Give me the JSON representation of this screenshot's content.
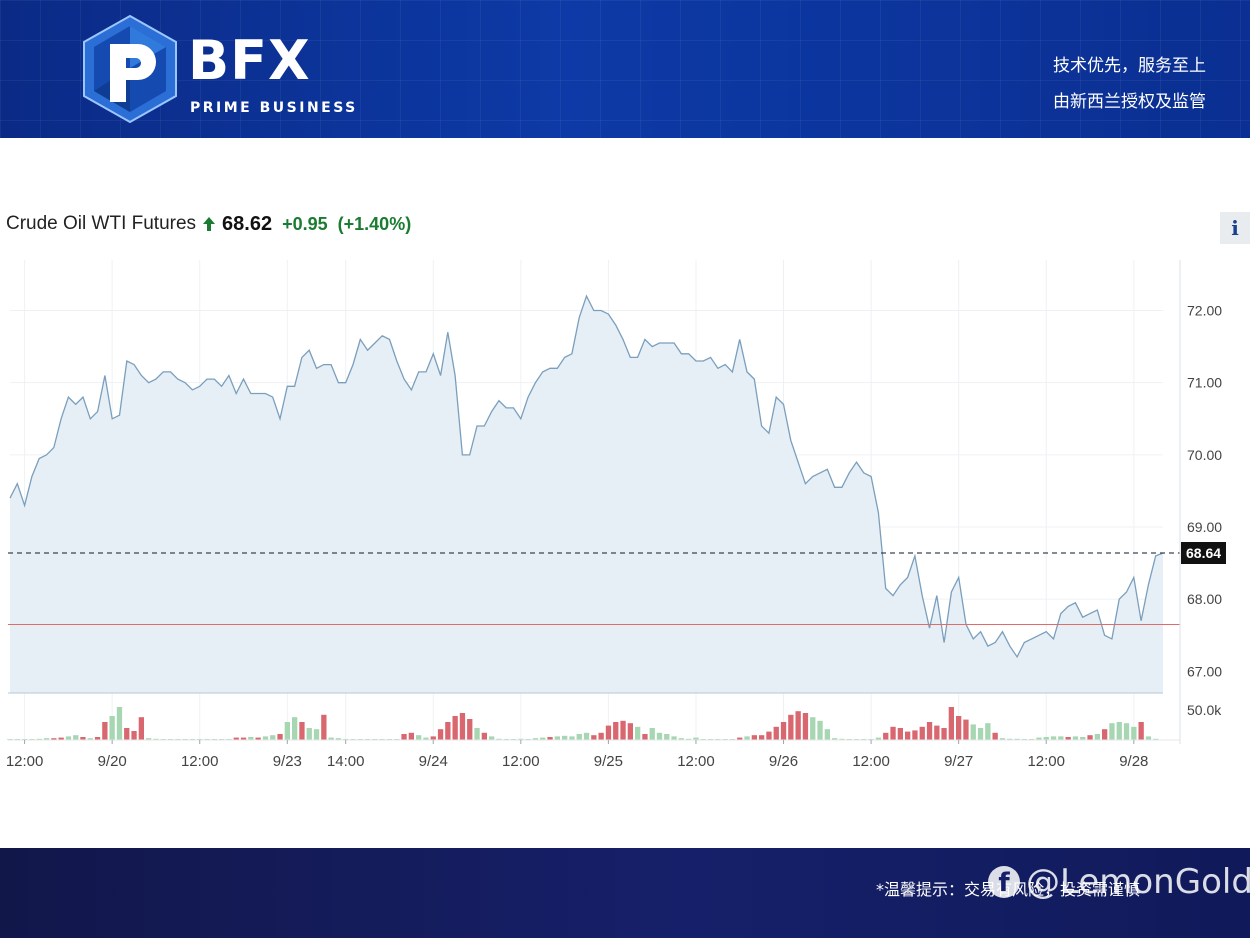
{
  "header": {
    "brand": "BFX",
    "brand_sub": "PRIME BUSINESS",
    "slogan_line1": "技术优先，服务至上",
    "slogan_line2": "由新西兰授权及监管"
  },
  "quote": {
    "name": "Crude Oil WTI Futures",
    "price": "68.62",
    "change": "+0.95",
    "change_pct": "(+1.40%)",
    "info_label": "i"
  },
  "footer": {
    "disclaimer": "*温馨提示：交易有风险，投资需谨慎",
    "watermark": "@LemonGold"
  },
  "colors": {
    "line": "#7a9fbd",
    "area": "#e6eef6",
    "volume_up": "#a7d6b2",
    "volume_down": "#d9676f",
    "last_price_line": "#3b4652",
    "red_line": "#e06b6b",
    "up_arrow": "#1a7b31"
  },
  "chart_data": {
    "type": "line",
    "title": "",
    "xlabel": "",
    "ylabel": "",
    "ylim": [
      66.7,
      72.7
    ],
    "y_ticks": [
      "72.00",
      "71.00",
      "70.00",
      "69.00",
      "68.00",
      "67.00"
    ],
    "y_tick_values": [
      72,
      71,
      70,
      69,
      68,
      67
    ],
    "x_ticks": [
      {
        "label": "12:00",
        "pos": 2
      },
      {
        "label": "9/20",
        "pos": 14
      },
      {
        "label": "12:00",
        "pos": 26
      },
      {
        "label": "9/23",
        "pos": 38
      },
      {
        "label": "14:00",
        "pos": 46
      },
      {
        "label": "9/24",
        "pos": 58
      },
      {
        "label": "12:00",
        "pos": 70
      },
      {
        "label": "9/25",
        "pos": 82
      },
      {
        "label": "12:00",
        "pos": 94
      },
      {
        "label": "9/26",
        "pos": 106
      },
      {
        "label": "12:00",
        "pos": 118
      },
      {
        "label": "9/27",
        "pos": 130
      },
      {
        "label": "12:00",
        "pos": 142
      },
      {
        "label": "9/28",
        "pos": 154
      }
    ],
    "last_price_label": "68.64",
    "last_price": 68.64,
    "reference_level": 67.65,
    "volume_tick_label": "50.0k",
    "volume_tick_value": 50,
    "volume_max": 80,
    "series": [
      {
        "values": [
          69.4,
          69.6,
          69.3,
          69.7,
          69.95,
          70.0,
          70.1,
          70.5,
          70.8,
          70.7,
          70.8,
          70.5,
          70.6,
          71.1,
          70.5,
          70.55,
          71.3,
          71.25,
          71.1,
          71.0,
          71.05,
          71.15,
          71.15,
          71.05,
          71.0,
          70.9,
          70.95,
          71.05,
          71.05,
          70.95,
          71.1,
          70.85,
          71.05,
          70.85,
          70.85,
          70.85,
          70.8,
          70.5,
          70.95,
          70.95,
          71.35,
          71.45,
          71.2,
          71.25,
          71.25,
          71.0,
          71.0,
          71.25,
          71.6,
          71.45,
          71.55,
          71.65,
          71.6,
          71.3,
          71.05,
          70.9,
          71.15,
          71.15,
          71.4,
          71.1,
          71.7,
          71.1,
          70.0,
          70.0,
          70.4,
          70.4,
          70.6,
          70.75,
          70.65,
          70.65,
          70.5,
          70.8,
          71.0,
          71.15,
          71.2,
          71.2,
          71.35,
          71.4,
          71.9,
          72.2,
          72.0,
          72.0,
          71.95,
          71.8,
          71.6,
          71.35,
          71.35,
          71.6,
          71.5,
          71.55,
          71.55,
          71.55,
          71.4,
          71.4,
          71.3,
          71.3,
          71.35,
          71.2,
          71.25,
          71.15,
          71.6,
          71.15,
          71.05,
          70.4,
          70.3,
          70.8,
          70.7,
          70.2,
          69.9,
          69.6,
          69.7,
          69.75,
          69.8,
          69.55,
          69.55,
          69.75,
          69.9,
          69.75,
          69.7,
          69.2,
          68.15,
          68.05,
          68.2,
          68.3,
          68.6,
          68.05,
          67.6,
          68.05,
          67.4,
          68.1,
          68.3,
          67.65,
          67.45,
          67.55,
          67.35,
          67.4,
          67.55,
          67.35,
          67.2,
          67.4,
          67.45,
          67.5,
          67.55,
          67.45,
          67.8,
          67.9,
          67.95,
          67.75,
          67.8,
          67.85,
          67.5,
          67.45,
          68.0,
          68.1,
          68.3,
          67.7,
          68.2,
          68.6,
          68.64
        ]
      }
    ],
    "volume": [
      {
        "v": 1,
        "d": "up"
      },
      {
        "v": 1,
        "d": "up"
      },
      {
        "v": 0,
        "d": "up"
      },
      {
        "v": 1,
        "d": "up"
      },
      {
        "v": 2,
        "d": "up"
      },
      {
        "v": 3,
        "d": "up"
      },
      {
        "v": 3,
        "d": "down"
      },
      {
        "v": 4,
        "d": "down"
      },
      {
        "v": 6,
        "d": "up"
      },
      {
        "v": 8,
        "d": "up"
      },
      {
        "v": 5,
        "d": "down"
      },
      {
        "v": 3,
        "d": "up"
      },
      {
        "v": 5,
        "d": "down"
      },
      {
        "v": 30,
        "d": "down"
      },
      {
        "v": 40,
        "d": "up"
      },
      {
        "v": 55,
        "d": "up"
      },
      {
        "v": 20,
        "d": "down"
      },
      {
        "v": 15,
        "d": "down"
      },
      {
        "v": 38,
        "d": "down"
      },
      {
        "v": 3,
        "d": "up"
      },
      {
        "v": 2,
        "d": "up"
      },
      {
        "v": 1,
        "d": "up"
      },
      {
        "v": 1,
        "d": "up"
      },
      {
        "v": 1,
        "d": "up"
      },
      {
        "v": 0,
        "d": "up"
      },
      {
        "v": 0,
        "d": "up"
      },
      {
        "v": 0,
        "d": "up"
      },
      {
        "v": 0,
        "d": "up"
      },
      {
        "v": 0,
        "d": "up"
      },
      {
        "v": 0,
        "d": "up"
      },
      {
        "v": 0,
        "d": "up"
      },
      {
        "v": 4,
        "d": "down"
      },
      {
        "v": 4,
        "d": "down"
      },
      {
        "v": 5,
        "d": "up"
      },
      {
        "v": 4,
        "d": "down"
      },
      {
        "v": 6,
        "d": "up"
      },
      {
        "v": 8,
        "d": "up"
      },
      {
        "v": 10,
        "d": "down"
      },
      {
        "v": 30,
        "d": "up"
      },
      {
        "v": 38,
        "d": "up"
      },
      {
        "v": 30,
        "d": "down"
      },
      {
        "v": 20,
        "d": "up"
      },
      {
        "v": 18,
        "d": "up"
      },
      {
        "v": 42,
        "d": "down"
      },
      {
        "v": 4,
        "d": "up"
      },
      {
        "v": 3,
        "d": "up"
      },
      {
        "v": 0,
        "d": "up"
      },
      {
        "v": 0,
        "d": "up"
      },
      {
        "v": 0,
        "d": "up"
      },
      {
        "v": 0,
        "d": "up"
      },
      {
        "v": 0,
        "d": "up"
      },
      {
        "v": 0,
        "d": "up"
      },
      {
        "v": 0,
        "d": "up"
      },
      {
        "v": 1,
        "d": "up"
      },
      {
        "v": 10,
        "d": "down"
      },
      {
        "v": 12,
        "d": "down"
      },
      {
        "v": 8,
        "d": "up"
      },
      {
        "v": 4,
        "d": "up"
      },
      {
        "v": 6,
        "d": "down"
      },
      {
        "v": 18,
        "d": "down"
      },
      {
        "v": 30,
        "d": "down"
      },
      {
        "v": 40,
        "d": "down"
      },
      {
        "v": 45,
        "d": "down"
      },
      {
        "v": 35,
        "d": "down"
      },
      {
        "v": 20,
        "d": "up"
      },
      {
        "v": 12,
        "d": "down"
      },
      {
        "v": 6,
        "d": "up"
      },
      {
        "v": 2,
        "d": "up"
      },
      {
        "v": 1,
        "d": "up"
      },
      {
        "v": 1,
        "d": "up"
      },
      {
        "v": 2,
        "d": "up"
      },
      {
        "v": 1,
        "d": "up"
      },
      {
        "v": 3,
        "d": "up"
      },
      {
        "v": 4,
        "d": "up"
      },
      {
        "v": 5,
        "d": "down"
      },
      {
        "v": 6,
        "d": "up"
      },
      {
        "v": 7,
        "d": "up"
      },
      {
        "v": 6,
        "d": "up"
      },
      {
        "v": 10,
        "d": "up"
      },
      {
        "v": 12,
        "d": "up"
      },
      {
        "v": 8,
        "d": "down"
      },
      {
        "v": 12,
        "d": "down"
      },
      {
        "v": 24,
        "d": "down"
      },
      {
        "v": 30,
        "d": "down"
      },
      {
        "v": 32,
        "d": "down"
      },
      {
        "v": 28,
        "d": "down"
      },
      {
        "v": 22,
        "d": "up"
      },
      {
        "v": 10,
        "d": "down"
      },
      {
        "v": 20,
        "d": "up"
      },
      {
        "v": 12,
        "d": "up"
      },
      {
        "v": 10,
        "d": "up"
      },
      {
        "v": 6,
        "d": "up"
      },
      {
        "v": 3,
        "d": "up"
      },
      {
        "v": 2,
        "d": "up"
      },
      {
        "v": 4,
        "d": "up"
      },
      {
        "v": 1,
        "d": "up"
      },
      {
        "v": 1,
        "d": "up"
      },
      {
        "v": 1,
        "d": "up"
      },
      {
        "v": 1,
        "d": "up"
      },
      {
        "v": 1,
        "d": "up"
      },
      {
        "v": 4,
        "d": "down"
      },
      {
        "v": 6,
        "d": "up"
      },
      {
        "v": 8,
        "d": "down"
      },
      {
        "v": 8,
        "d": "down"
      },
      {
        "v": 14,
        "d": "down"
      },
      {
        "v": 22,
        "d": "down"
      },
      {
        "v": 30,
        "d": "down"
      },
      {
        "v": 42,
        "d": "down"
      },
      {
        "v": 48,
        "d": "down"
      },
      {
        "v": 45,
        "d": "down"
      },
      {
        "v": 38,
        "d": "up"
      },
      {
        "v": 32,
        "d": "up"
      },
      {
        "v": 18,
        "d": "up"
      },
      {
        "v": 3,
        "d": "up"
      },
      {
        "v": 2,
        "d": "up"
      },
      {
        "v": 1,
        "d": "up"
      },
      {
        "v": 1,
        "d": "up"
      },
      {
        "v": 1,
        "d": "up"
      },
      {
        "v": 1,
        "d": "up"
      },
      {
        "v": 4,
        "d": "up"
      },
      {
        "v": 12,
        "d": "down"
      },
      {
        "v": 22,
        "d": "down"
      },
      {
        "v": 20,
        "d": "down"
      },
      {
        "v": 14,
        "d": "down"
      },
      {
        "v": 16,
        "d": "down"
      },
      {
        "v": 22,
        "d": "down"
      },
      {
        "v": 30,
        "d": "down"
      },
      {
        "v": 24,
        "d": "down"
      },
      {
        "v": 20,
        "d": "down"
      },
      {
        "v": 55,
        "d": "down"
      },
      {
        "v": 40,
        "d": "down"
      },
      {
        "v": 34,
        "d": "down"
      },
      {
        "v": 26,
        "d": "up"
      },
      {
        "v": 20,
        "d": "up"
      },
      {
        "v": 28,
        "d": "up"
      },
      {
        "v": 12,
        "d": "down"
      },
      {
        "v": 3,
        "d": "up"
      },
      {
        "v": 2,
        "d": "up"
      },
      {
        "v": 2,
        "d": "up"
      },
      {
        "v": 1,
        "d": "up"
      },
      {
        "v": 1,
        "d": "up"
      },
      {
        "v": 4,
        "d": "up"
      },
      {
        "v": 5,
        "d": "up"
      },
      {
        "v": 6,
        "d": "up"
      },
      {
        "v": 6,
        "d": "up"
      },
      {
        "v": 5,
        "d": "down"
      },
      {
        "v": 6,
        "d": "up"
      },
      {
        "v": 5,
        "d": "up"
      },
      {
        "v": 8,
        "d": "down"
      },
      {
        "v": 10,
        "d": "up"
      },
      {
        "v": 18,
        "d": "down"
      },
      {
        "v": 28,
        "d": "up"
      },
      {
        "v": 30,
        "d": "up"
      },
      {
        "v": 28,
        "d": "up"
      },
      {
        "v": 22,
        "d": "up"
      },
      {
        "v": 30,
        "d": "down"
      },
      {
        "v": 6,
        "d": "up"
      },
      {
        "v": 2,
        "d": "up"
      }
    ]
  }
}
